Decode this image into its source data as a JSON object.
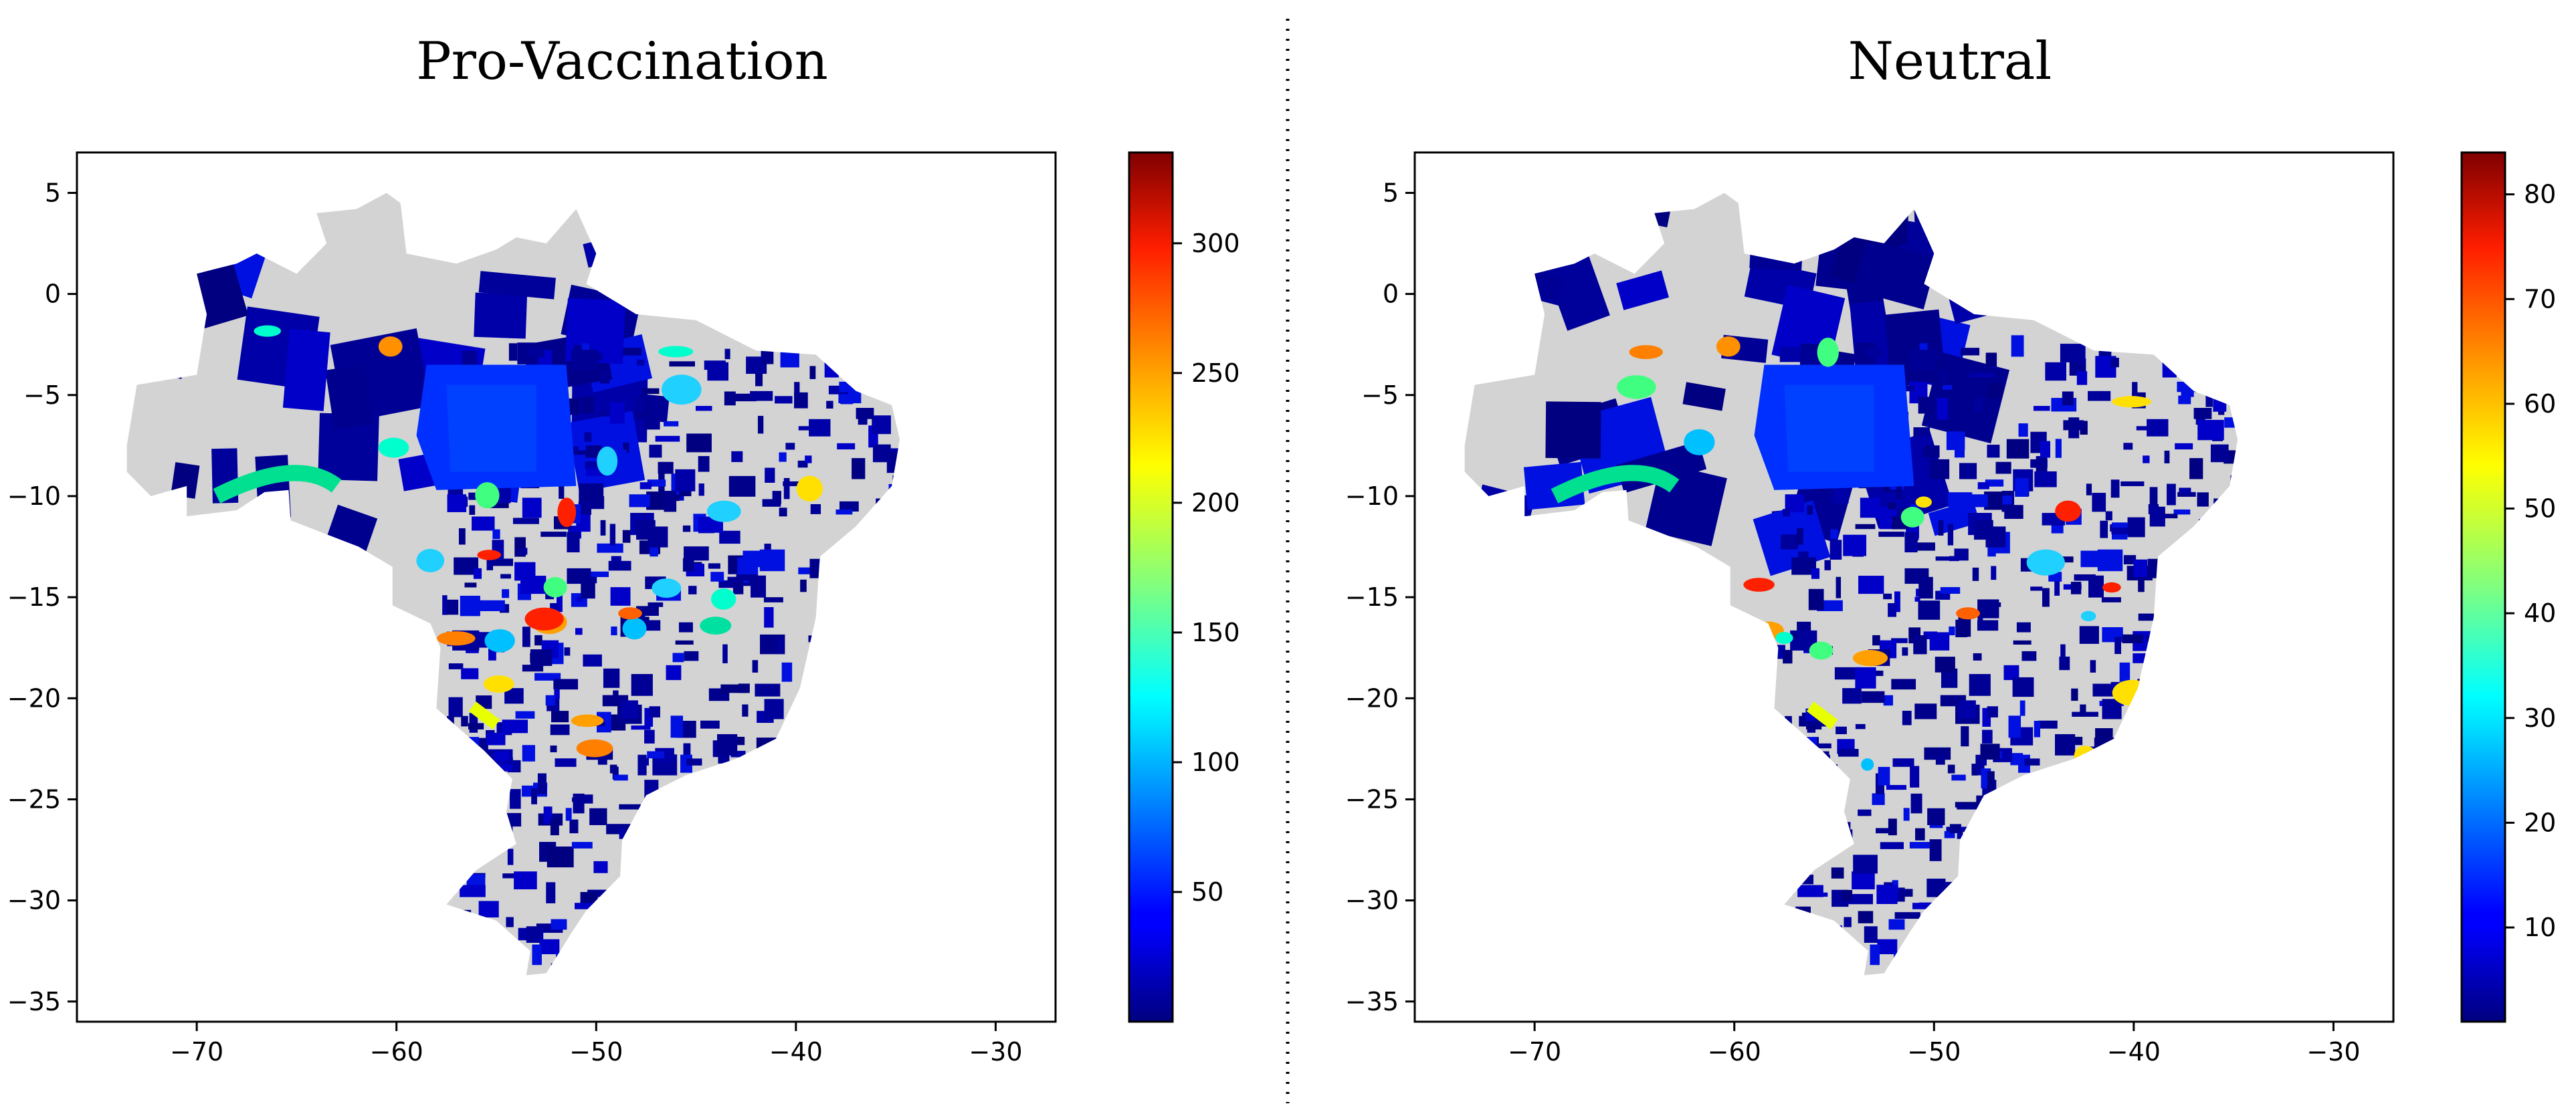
{
  "panels": [
    {
      "title": "Pro-Vaccination",
      "colorbar": {
        "ticks": [
          "50",
          "100",
          "150",
          "200",
          "250",
          "300"
        ],
        "tick_values": [
          50,
          100,
          150,
          200,
          250,
          300
        ],
        "min": 0,
        "max": 335
      }
    },
    {
      "title": "Neutral",
      "colorbar": {
        "ticks": [
          "10",
          "20",
          "30",
          "40",
          "50",
          "60",
          "70",
          "80"
        ],
        "tick_values": [
          10,
          20,
          30,
          40,
          50,
          60,
          70,
          80
        ],
        "min": 1,
        "max": 84
      }
    }
  ],
  "axes": {
    "xticks": [
      "−70",
      "−60",
      "−50",
      "−40",
      "−30"
    ],
    "xtick_values": [
      -70,
      -60,
      -50,
      -40,
      -30
    ],
    "yticks": [
      "5",
      "0",
      "−5",
      "−10",
      "−15",
      "−20",
      "−25",
      "−30",
      "−35"
    ],
    "ytick_values": [
      5,
      0,
      -5,
      -10,
      -15,
      -20,
      -25,
      -30,
      -35
    ],
    "xlim": [
      -76,
      -27
    ],
    "ylim": [
      -36,
      7
    ]
  },
  "colors": {
    "no_data": "#d3d3d3",
    "low": "#00008b",
    "colormap": "jet",
    "divider": "#000000"
  }
}
